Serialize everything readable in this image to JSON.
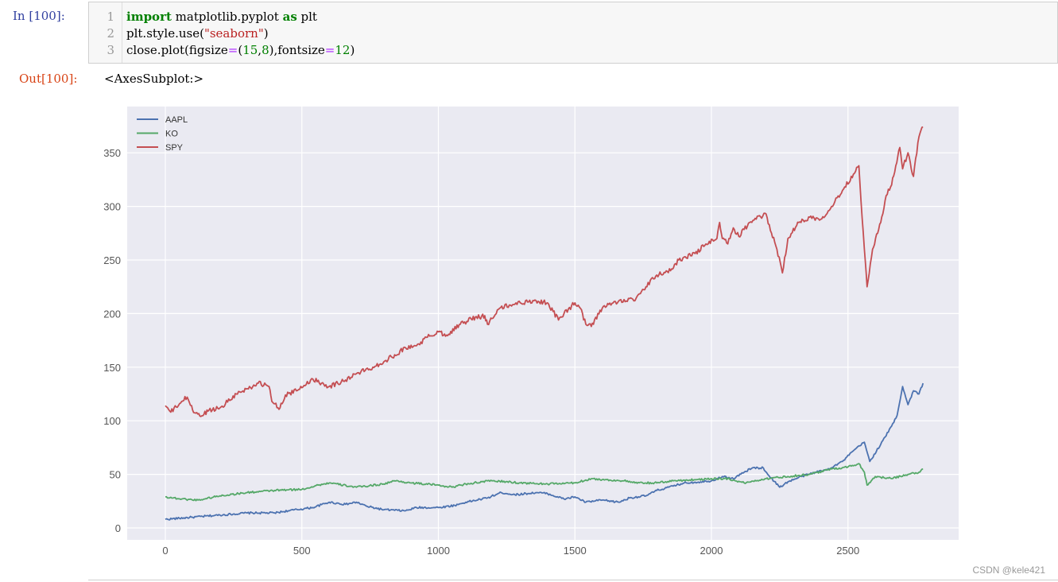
{
  "input_cell": {
    "prompt": "In  [100]:",
    "line_numbers": [
      "1",
      "2",
      "3"
    ],
    "lines": [
      [
        {
          "t": "kw",
          "v": "import"
        },
        {
          "t": "",
          "v": " matplotlib.pyplot "
        },
        {
          "t": "kw",
          "v": "as"
        },
        {
          "t": "",
          "v": " plt"
        }
      ],
      [
        {
          "t": "",
          "v": "plt.style.use("
        },
        {
          "t": "str",
          "v": "\"seaborn\""
        },
        {
          "t": "",
          "v": ")"
        }
      ],
      [
        {
          "t": "",
          "v": "close.plot(figsize"
        },
        {
          "t": "op",
          "v": "="
        },
        {
          "t": "",
          "v": "("
        },
        {
          "t": "num",
          "v": "15"
        },
        {
          "t": "",
          "v": ","
        },
        {
          "t": "num",
          "v": "8"
        },
        {
          "t": "",
          "v": "),fontsize"
        },
        {
          "t": "op",
          "v": "="
        },
        {
          "t": "num",
          "v": "12"
        },
        {
          "t": "",
          "v": ")"
        }
      ]
    ]
  },
  "output_cell": {
    "prompt": "Out[100]:",
    "text": "<AxesSubplot:>"
  },
  "watermark": "CSDN @kele421",
  "chart_data": {
    "type": "line",
    "title": "",
    "xlabel": "",
    "ylabel": "",
    "style": "seaborn",
    "grid": true,
    "legend_position": "upper left",
    "xlim": [
      -140,
      2900
    ],
    "ylim": [
      -10,
      393
    ],
    "xticks": [
      0,
      500,
      1000,
      1500,
      2000,
      2500
    ],
    "yticks": [
      0,
      50,
      100,
      150,
      200,
      250,
      300,
      350
    ],
    "colors": {
      "background": "#eaeaf2",
      "grid": "#ffffff"
    },
    "series": [
      {
        "name": "AAPL",
        "color": "#4c72b0",
        "x": [
          0,
          100,
          200,
          300,
          400,
          450,
          540,
          600,
          660,
          700,
          740,
          800,
          880,
          920,
          1000,
          1060,
          1100,
          1180,
          1230,
          1280,
          1360,
          1400,
          1460,
          1500,
          1540,
          1600,
          1660,
          1700,
          1760,
          1800,
          1860,
          1900,
          1960,
          2000,
          2040,
          2080,
          2120,
          2150,
          2190,
          2210,
          2250,
          2280,
          2330,
          2380,
          2420,
          2480,
          2520,
          2560,
          2580,
          2620,
          2660,
          2680,
          2700,
          2720,
          2740,
          2760,
          2775
        ],
        "values": [
          8,
          10,
          12,
          14,
          14,
          16,
          19,
          24,
          22,
          24,
          20,
          17,
          16,
          19,
          19,
          21,
          24,
          28,
          33,
          31,
          33,
          32,
          27,
          29,
          24,
          26,
          24,
          28,
          30,
          35,
          39,
          42,
          43,
          44,
          48,
          46,
          52,
          56,
          56,
          49,
          38,
          43,
          48,
          52,
          54,
          62,
          72,
          80,
          62,
          78,
          95,
          105,
          132,
          115,
          128,
          125,
          135
        ]
      },
      {
        "name": "KO",
        "color": "#55a868",
        "x": [
          0,
          60,
          120,
          200,
          300,
          400,
          500,
          560,
          600,
          700,
          800,
          840,
          900,
          1000,
          1050,
          1100,
          1160,
          1200,
          1300,
          1400,
          1500,
          1560,
          1600,
          1680,
          1720,
          1800,
          1860,
          1940,
          2000,
          2060,
          2120,
          2200,
          2280,
          2360,
          2440,
          2500,
          2540,
          2560,
          2570,
          2600,
          2660,
          2720,
          2760,
          2775
        ],
        "values": [
          29,
          27,
          26,
          30,
          33,
          35,
          36,
          40,
          42,
          38,
          41,
          44,
          42,
          40,
          38,
          41,
          43,
          44,
          42,
          41,
          42,
          46,
          45,
          44,
          42,
          42,
          44,
          45,
          46,
          46,
          42,
          46,
          48,
          50,
          55,
          57,
          60,
          52,
          40,
          48,
          46,
          50,
          52,
          55
        ]
      },
      {
        "name": "SPY",
        "color": "#c44e52",
        "x": [
          0,
          20,
          60,
          80,
          100,
          130,
          160,
          200,
          260,
          300,
          340,
          380,
          390,
          420,
          440,
          480,
          540,
          600,
          660,
          700,
          760,
          800,
          880,
          920,
          960,
          1000,
          1030,
          1080,
          1120,
          1170,
          1180,
          1220,
          1260,
          1300,
          1350,
          1400,
          1420,
          1440,
          1460,
          1500,
          1520,
          1540,
          1560,
          1600,
          1640,
          1700,
          1720,
          1760,
          1800,
          1850,
          1880,
          1940,
          1980,
          2020,
          2030,
          2040,
          2060,
          2080,
          2100,
          2140,
          2200,
          2220,
          2240,
          2260,
          2280,
          2320,
          2360,
          2400,
          2440,
          2480,
          2520,
          2540,
          2560,
          2570,
          2590,
          2620,
          2640,
          2660,
          2690,
          2700,
          2720,
          2740,
          2760,
          2775
        ],
        "values": [
          114,
          108,
          118,
          122,
          110,
          104,
          110,
          112,
          125,
          130,
          135,
          132,
          118,
          112,
          124,
          128,
          139,
          132,
          138,
          144,
          150,
          155,
          168,
          170,
          178,
          183,
          180,
          190,
          195,
          198,
          190,
          204,
          208,
          210,
          212,
          210,
          202,
          194,
          200,
          210,
          205,
          190,
          188,
          205,
          210,
          214,
          212,
          225,
          236,
          240,
          250,
          256,
          265,
          270,
          285,
          270,
          265,
          280,
          272,
          285,
          293,
          275,
          260,
          238,
          270,
          285,
          290,
          288,
          300,
          315,
          330,
          338,
          260,
          225,
          260,
          285,
          310,
          320,
          355,
          335,
          350,
          328,
          365,
          374
        ]
      }
    ]
  }
}
